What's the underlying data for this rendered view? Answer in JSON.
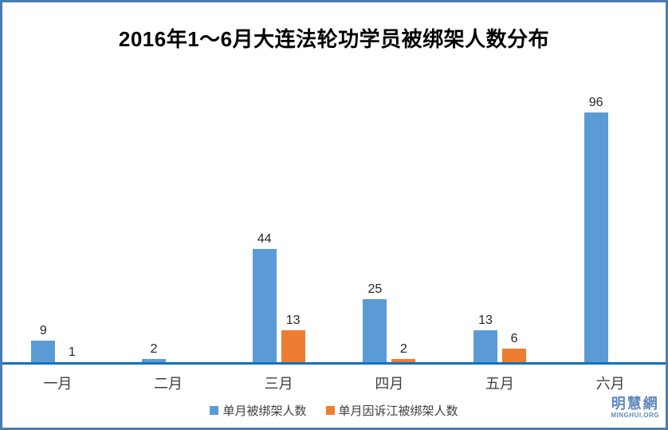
{
  "chart_data": {
    "type": "bar",
    "title": "2016年1～6月大连法轮功学员被绑架人数分布",
    "categories": [
      "一月",
      "二月",
      "三月",
      "四月",
      "五月",
      "六月"
    ],
    "series": [
      {
        "name": "单月被绑架人数",
        "color": "#5B9BD5",
        "values": [
          9,
          2,
          44,
          25,
          13,
          96
        ]
      },
      {
        "name": "单月因诉江被绑架人数",
        "color": "#ED7D31",
        "values": [
          1,
          0,
          13,
          2,
          6,
          0
        ]
      }
    ],
    "ylim": [
      0,
      96
    ],
    "grid": false,
    "value_labels": true,
    "legend_position": "bottom",
    "axis_shown": "x-only"
  },
  "logo": {
    "text": "明慧網",
    "subtext": "MINGHUI.ORG"
  },
  "colors": {
    "series1": "#5B9BD5",
    "series2": "#ED7D31",
    "axis": "#1272BE",
    "frame": "#4A7CB2",
    "logo": "#5E87BD",
    "text": "#3F3F3F",
    "title": "#000000",
    "background": "#FFFFFF"
  }
}
